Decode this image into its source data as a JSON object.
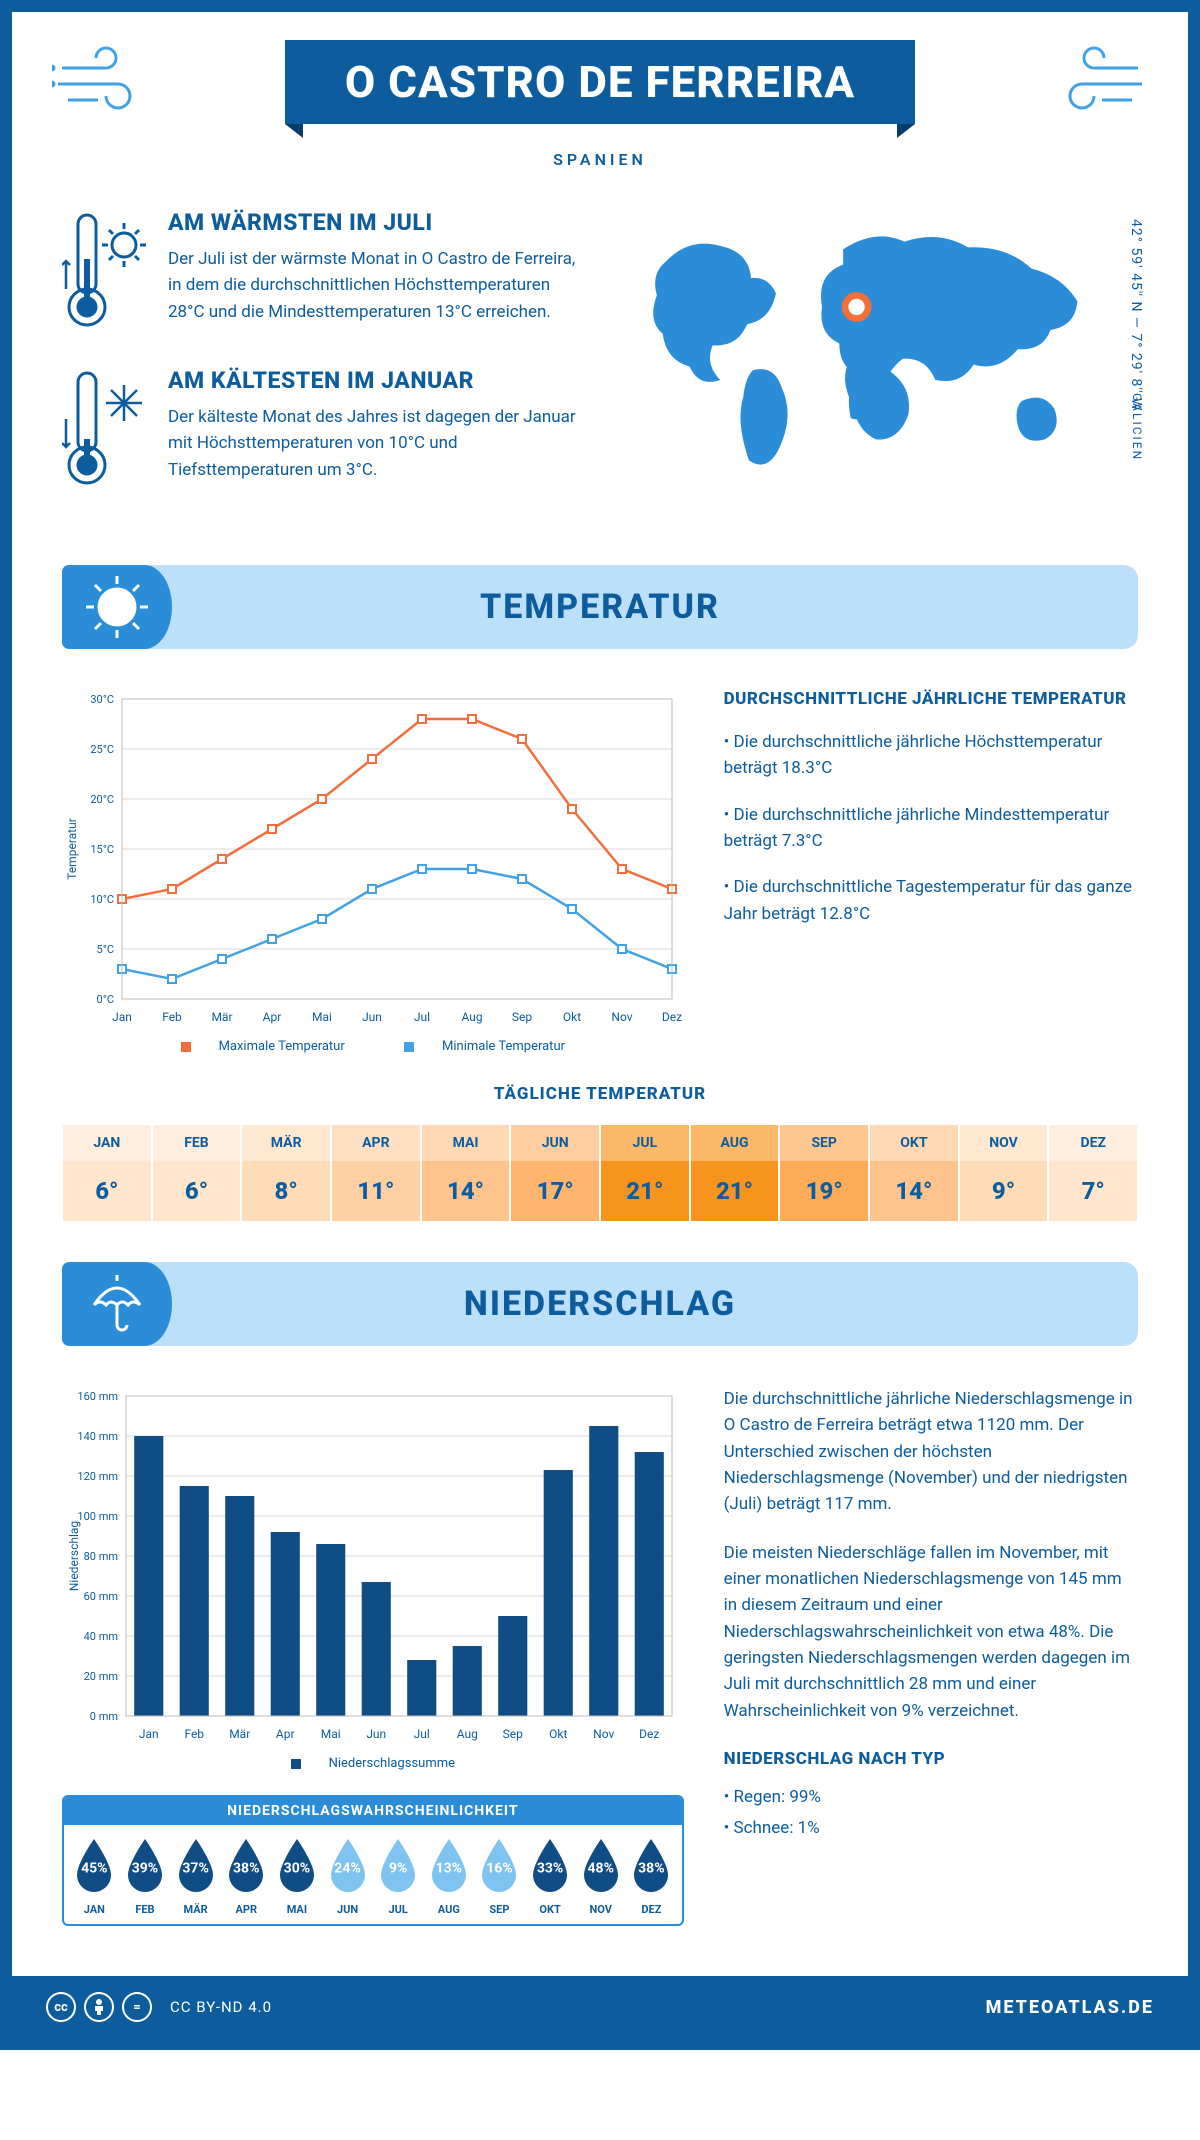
{
  "colors": {
    "primary": "#0d5c9e",
    "accent": "#2b8dd8",
    "light": "#bde0fa",
    "max_line": "#f26f3b",
    "min_line": "#43a2e6",
    "grid": "#d9d9d9",
    "bar": "#114d85"
  },
  "header": {
    "title": "O CASTRO DE FERREIRA",
    "subtitle": "SPANIEN"
  },
  "facts": {
    "warm": {
      "title": "AM WÄRMSTEN IM JULI",
      "text": "Der Juli ist der wärmste Monat in O Castro de Ferreira, in dem die durchschnittlichen Höchsttemperaturen 28°C und die Mindesttemperaturen 13°C erreichen."
    },
    "cold": {
      "title": "AM KÄLTESTEN IM JANUAR",
      "text": "Der kälteste Monat des Jahres ist dagegen der Januar mit Höchsttemperaturen von 10°C und Tiefsttemperaturen um 3°C."
    }
  },
  "map": {
    "coords": "42° 59' 45'' N — 7° 29' 8'' W",
    "region": "GALICIEN"
  },
  "sections": {
    "temperature": "TEMPERATUR",
    "precipitation": "NIEDERSCHLAG"
  },
  "temp_annual": {
    "title": "DURCHSCHNITTLICHE JÄHRLICHE TEMPERATUR",
    "bullets": [
      "• Die durchschnittliche jährliche Höchsttemperatur beträgt 18.3°C",
      "• Die durchschnittliche jährliche Mindesttemperatur beträgt 7.3°C",
      "• Die durchschnittliche Tagestemperatur für das ganze Jahr beträgt 12.8°C"
    ]
  },
  "temp_chart": {
    "y_label": "Temperatur",
    "y_ticks": [
      "0°C",
      "5°C",
      "10°C",
      "15°C",
      "20°C",
      "25°C",
      "30°C"
    ],
    "y_min": 0,
    "y_max": 30,
    "months": [
      "Jan",
      "Feb",
      "Mär",
      "Apr",
      "Mai",
      "Jun",
      "Jul",
      "Aug",
      "Sep",
      "Okt",
      "Nov",
      "Dez"
    ],
    "series": {
      "max": {
        "label": "Maximale Temperatur",
        "values": [
          10,
          11,
          14,
          17,
          20,
          24,
          28,
          28,
          26,
          19,
          13,
          11
        ]
      },
      "min": {
        "label": "Minimale Temperatur",
        "values": [
          3,
          2,
          4,
          6,
          8,
          11,
          13,
          13,
          12,
          9,
          5,
          3
        ]
      }
    }
  },
  "daily_temp": {
    "title": "TÄGLICHE TEMPERATUR",
    "months": [
      "JAN",
      "FEB",
      "MÄR",
      "APR",
      "MAI",
      "JUN",
      "JUL",
      "AUG",
      "SEP",
      "OKT",
      "NOV",
      "DEZ"
    ],
    "values": [
      "6°",
      "6°",
      "8°",
      "11°",
      "14°",
      "17°",
      "21°",
      "21°",
      "19°",
      "14°",
      "9°",
      "7°"
    ],
    "raw": [
      6,
      6,
      8,
      11,
      14,
      17,
      21,
      21,
      19,
      14,
      9,
      7
    ],
    "colors": [
      "#ffe6cc",
      "#ffe6cc",
      "#ffdcb8",
      "#ffd0a3",
      "#ffc48e",
      "#ffb570",
      "#f7941d",
      "#f7941d",
      "#ffab58",
      "#ffc48e",
      "#ffdcb8",
      "#ffe6cc"
    ]
  },
  "precip_chart": {
    "y_label": "Niederschlag",
    "y_ticks": [
      "0 mm",
      "20 mm",
      "40 mm",
      "60 mm",
      "80 mm",
      "100 mm",
      "120 mm",
      "140 mm",
      "160 mm"
    ],
    "y_min": 0,
    "y_max": 160,
    "months": [
      "Jan",
      "Feb",
      "Mär",
      "Apr",
      "Mai",
      "Jun",
      "Jul",
      "Aug",
      "Sep",
      "Okt",
      "Nov",
      "Dez"
    ],
    "values": [
      140,
      115,
      110,
      92,
      86,
      67,
      28,
      35,
      50,
      123,
      145,
      132
    ],
    "legend": "Niederschlagssumme"
  },
  "precip_text": {
    "p1": "Die durchschnittliche jährliche Niederschlagsmenge in O Castro de Ferreira beträgt etwa 1120 mm. Der Unterschied zwischen der höchsten Niederschlagsmenge (November) und der niedrigsten (Juli) beträgt 117 mm.",
    "p2": "Die meisten Niederschläge fallen im November, mit einer monatlichen Niederschlagsmenge von 145 mm in diesem Zeitraum und einer Niederschlagswahrscheinlichkeit von etwa 48%. Die geringsten Niederschlagsmengen werden dagegen im Juli mit durchschnittlich 28 mm und einer Wahrscheinlichkeit von 9% verzeichnet.",
    "type_title": "NIEDERSCHLAG NACH TYP",
    "type_rain": "• Regen: 99%",
    "type_snow": "• Schnee: 1%"
  },
  "prob": {
    "title": "NIEDERSCHLAGSWAHRSCHEINLICHKEIT",
    "months": [
      "JAN",
      "FEB",
      "MÄR",
      "APR",
      "MAI",
      "JUN",
      "JUL",
      "AUG",
      "SEP",
      "OKT",
      "NOV",
      "DEZ"
    ],
    "values": [
      "45%",
      "39%",
      "37%",
      "38%",
      "30%",
      "24%",
      "9%",
      "13%",
      "16%",
      "33%",
      "48%",
      "38%"
    ],
    "raw": [
      45,
      39,
      37,
      38,
      30,
      24,
      9,
      13,
      16,
      33,
      48,
      38
    ]
  },
  "footer": {
    "license": "CC BY-ND 4.0",
    "brand": "METEOATLAS.DE"
  }
}
